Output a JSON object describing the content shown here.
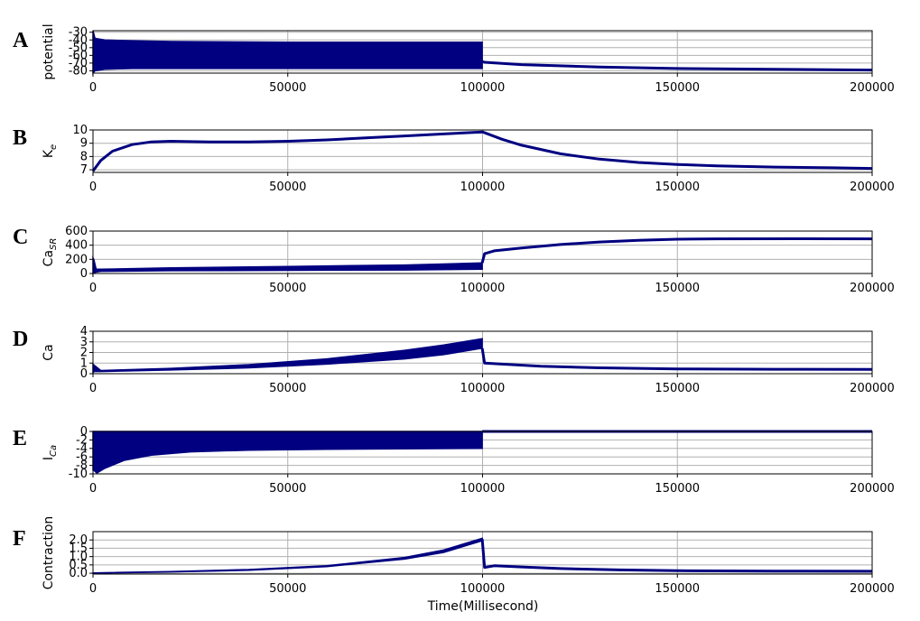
{
  "figure": {
    "xlabel": "Time(Millisecond)",
    "line_color": "#000080",
    "grid_color": "#b0b0b0"
  },
  "chart_data": [
    {
      "panel": "A",
      "type": "line",
      "ylabel": "potential",
      "ylabel_sub": "",
      "xlim": [
        0,
        200000
      ],
      "ylim": [
        -83,
        -28
      ],
      "yticks": [
        -80,
        -70,
        -60,
        -50,
        -40,
        -30
      ],
      "xticks": [
        0,
        50000,
        100000,
        150000,
        200000
      ],
      "band_x": [
        0,
        500,
        3000,
        10000,
        20000,
        50000,
        80000,
        99900
      ],
      "band_lo": [
        -83,
        -80,
        -78,
        -77,
        -77,
        -77,
        -77,
        -77
      ],
      "band_hi": [
        -28,
        -38,
        -40,
        -41,
        -42,
        -43,
        -43,
        -43
      ],
      "line_x": [
        99900,
        100500,
        110000,
        130000,
        150000,
        175000,
        200000
      ],
      "line_y": [
        -68,
        -69,
        -72,
        -75,
        -77,
        -78,
        -79
      ]
    },
    {
      "panel": "B",
      "type": "line",
      "ylabel": "K",
      "ylabel_sub": "e",
      "xlim": [
        0,
        200000
      ],
      "ylim": [
        6.8,
        10
      ],
      "yticks": [
        7,
        8,
        9,
        10
      ],
      "xticks": [
        0,
        50000,
        100000,
        150000,
        200000
      ],
      "line_x": [
        0,
        2000,
        5000,
        10000,
        15000,
        20000,
        30000,
        40000,
        50000,
        60000,
        70000,
        80000,
        90000,
        100000,
        105000,
        110000,
        120000,
        130000,
        140000,
        150000,
        160000,
        175000,
        190000,
        200000
      ],
      "line_y": [
        6.9,
        7.7,
        8.4,
        8.9,
        9.1,
        9.15,
        9.1,
        9.1,
        9.15,
        9.25,
        9.4,
        9.55,
        9.7,
        9.85,
        9.3,
        8.85,
        8.2,
        7.8,
        7.55,
        7.4,
        7.3,
        7.2,
        7.15,
        7.1
      ]
    },
    {
      "panel": "C",
      "type": "line",
      "ylabel": "Ca",
      "ylabel_sub": "SR",
      "xlim": [
        0,
        200000
      ],
      "ylim": [
        0,
        600
      ],
      "yticks": [
        0,
        200,
        400,
        600
      ],
      "xticks": [
        0,
        50000,
        100000,
        150000,
        200000
      ],
      "band_x": [
        0,
        200,
        800,
        2000,
        20000,
        50000,
        80000,
        99900
      ],
      "band_lo": [
        0,
        10,
        20,
        30,
        40,
        45,
        50,
        60
      ],
      "band_hi": [
        220,
        200,
        60,
        60,
        80,
        100,
        120,
        150
      ],
      "line_x": [
        99900,
        100500,
        103000,
        110000,
        120000,
        130000,
        140000,
        150000,
        160000,
        180000,
        200000
      ],
      "line_y": [
        150,
        280,
        320,
        360,
        410,
        445,
        470,
        485,
        490,
        492,
        490
      ]
    },
    {
      "panel": "D",
      "type": "line",
      "ylabel": "Ca",
      "ylabel_sub": "",
      "xlim": [
        0,
        200000
      ],
      "ylim": [
        0,
        4
      ],
      "yticks": [
        0,
        1,
        2,
        3,
        4
      ],
      "xticks": [
        0,
        50000,
        100000,
        150000,
        200000
      ],
      "band_x": [
        0,
        300,
        2000,
        20000,
        40000,
        60000,
        80000,
        90000,
        99900
      ],
      "band_lo": [
        0.1,
        0.2,
        0.2,
        0.35,
        0.55,
        0.9,
        1.4,
        1.8,
        2.4
      ],
      "band_hi": [
        0.9,
        0.8,
        0.3,
        0.5,
        0.85,
        1.4,
        2.2,
        2.7,
        3.3
      ],
      "line_x": [
        99900,
        100500,
        105000,
        115000,
        130000,
        150000,
        175000,
        200000
      ],
      "line_y": [
        2.4,
        1.0,
        0.9,
        0.7,
        0.55,
        0.45,
        0.42,
        0.4
      ]
    },
    {
      "panel": "E",
      "type": "line",
      "ylabel": "I",
      "ylabel_sub": "Ca",
      "xlim": [
        0,
        200000
      ],
      "ylim": [
        -10,
        0
      ],
      "yticks": [
        -10,
        -8,
        -6,
        -4,
        -2,
        0
      ],
      "xticks": [
        0,
        50000,
        100000,
        150000,
        200000
      ],
      "band_x": [
        0,
        1000,
        3000,
        8000,
        15000,
        25000,
        40000,
        60000,
        99900
      ],
      "band_lo": [
        -9,
        -9.8,
        -8.7,
        -6.8,
        -5.6,
        -4.8,
        -4.4,
        -4.2,
        -4.0
      ],
      "band_hi": [
        0,
        0,
        0,
        0,
        0,
        0,
        0,
        0,
        0
      ],
      "line_x": [
        99900,
        100500,
        200000
      ],
      "line_y": [
        0,
        0,
        0
      ]
    },
    {
      "panel": "F",
      "type": "line",
      "ylabel": "Contraction",
      "ylabel_sub": "",
      "xlim": [
        0,
        200000
      ],
      "ylim": [
        -0.05,
        2.5
      ],
      "yticks": [
        0.0,
        0.5,
        1.0,
        1.5,
        2.0
      ],
      "xticks": [
        0,
        50000,
        100000,
        150000,
        200000
      ],
      "tick_decimals": 1,
      "band_x": [
        0,
        20000,
        40000,
        60000,
        80000,
        90000,
        99900
      ],
      "band_lo": [
        0.0,
        0.08,
        0.18,
        0.4,
        0.85,
        1.25,
        1.95
      ],
      "band_hi": [
        0.02,
        0.1,
        0.22,
        0.45,
        0.95,
        1.4,
        2.1
      ],
      "line_x": [
        99900,
        100500,
        103000,
        110000,
        120000,
        135000,
        150000,
        175000,
        200000
      ],
      "line_y": [
        2.05,
        0.35,
        0.45,
        0.38,
        0.28,
        0.2,
        0.15,
        0.13,
        0.12
      ]
    }
  ]
}
